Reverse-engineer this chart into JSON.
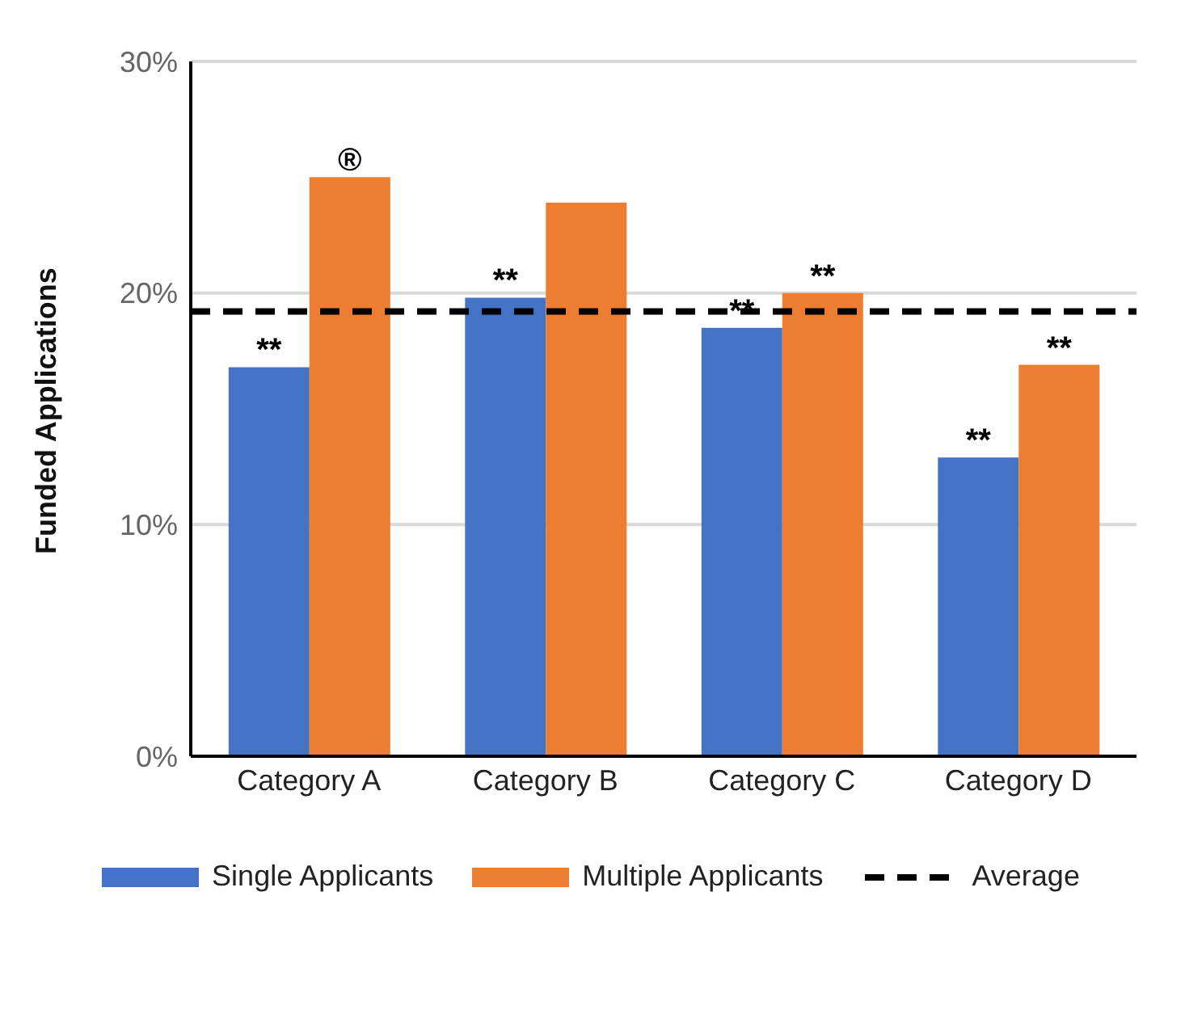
{
  "chart_data": {
    "type": "bar",
    "ylabel": "Funded Applications",
    "categories": [
      "Category A",
      "Category B",
      "Category C",
      "Category D"
    ],
    "series": [
      {
        "name": "Single Applicants",
        "color": "#4472c4",
        "values": [
          16.8,
          19.8,
          18.5,
          12.9
        ],
        "value_labels": [
          "**",
          "**",
          "**",
          "**"
        ]
      },
      {
        "name": "Multiple Applicants",
        "color": "#ed7d31",
        "values": [
          25.0,
          23.9,
          20.0,
          16.9
        ],
        "value_labels": [
          "®",
          null,
          "**",
          "**"
        ]
      }
    ],
    "ref_lines": [
      {
        "axis": "y",
        "value": 19.2,
        "label": "Average",
        "color": "#000000",
        "line_style": "dashed"
      }
    ],
    "ylim": [
      0,
      30
    ],
    "yticks": [
      {
        "value": 0,
        "label": "0%"
      },
      {
        "value": 10,
        "label": "10%"
      },
      {
        "value": 20,
        "label": "20%"
      },
      {
        "value": 30,
        "label": "30%"
      }
    ],
    "grid": "y",
    "legend": "bottom"
  }
}
